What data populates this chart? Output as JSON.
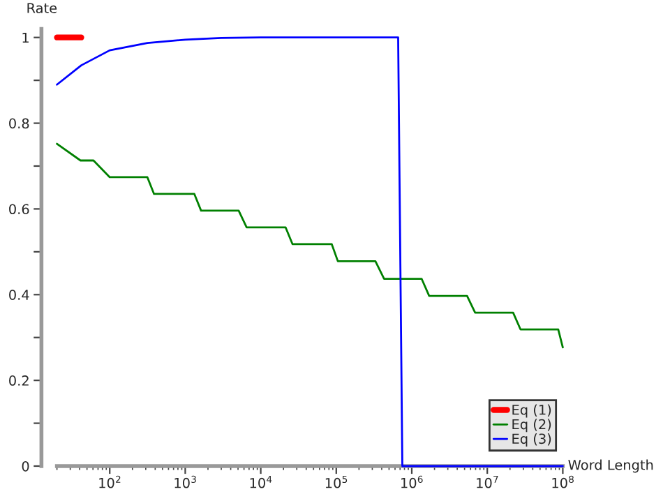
{
  "chart_data": {
    "type": "line",
    "xlabel": "Word Length",
    "ylabel": "Rate",
    "log": "x",
    "xlim": [
      20,
      100000000
    ],
    "ylim": [
      0,
      1.02
    ],
    "xticks": [
      {
        "value": 100,
        "label": "10$^{2}$"
      },
      {
        "value": 1000,
        "label": "10$^{3}$"
      },
      {
        "value": 10000,
        "label": "10$^{4}$"
      },
      {
        "value": 100000,
        "label": "10$^{5}$"
      },
      {
        "value": 1000000,
        "label": "10$^{6}$"
      },
      {
        "value": 10000000,
        "label": "10$^{7}$"
      },
      {
        "value": 100000000,
        "label": "10$^{8}$"
      }
    ],
    "yticks": [
      0,
      {
        "value": 0.1,
        "label": null
      },
      0.2,
      {
        "value": 0.3,
        "label": null
      },
      0.4,
      {
        "value": 0.5,
        "label": null
      },
      0.6,
      {
        "value": 0.7,
        "label": null
      },
      0.8,
      {
        "value": 0.9,
        "label": null
      },
      1
    ],
    "grid": false,
    "legend": "bottom right",
    "marker": "none",
    "line_style": "solid",
    "series": [
      {
        "name": "Eq (1)",
        "color": "#ff0000",
        "x": [
          20,
          42
        ],
        "values": [
          1,
          1
        ]
      },
      {
        "name": "Eq (2)",
        "color": "#008000",
        "x": [
          20,
          41,
          61,
          100,
          315,
          386,
          1320,
          1620,
          5100,
          6500,
          21300,
          26300,
          87000,
          105000,
          330000,
          430000,
          1350000,
          1700000,
          5400000,
          6900000,
          22000000,
          27500000,
          87000000,
          100000000
        ],
        "values": [
          0.752,
          0.713,
          0.713,
          0.674,
          0.674,
          0.635,
          0.635,
          0.596,
          0.596,
          0.557,
          0.557,
          0.518,
          0.518,
          0.478,
          0.478,
          0.437,
          0.437,
          0.397,
          0.397,
          0.358,
          0.358,
          0.319,
          0.319,
          0.277
        ]
      },
      {
        "name": "Eq (3)",
        "color": "#0000ff",
        "x": [
          20,
          42,
          100,
          315,
          1000,
          3000,
          10000,
          660000,
          750000,
          100000000
        ],
        "values": [
          0.89,
          0.935,
          0.97,
          0.987,
          0.995,
          0.999,
          1,
          1,
          0,
          0
        ]
      }
    ]
  }
}
